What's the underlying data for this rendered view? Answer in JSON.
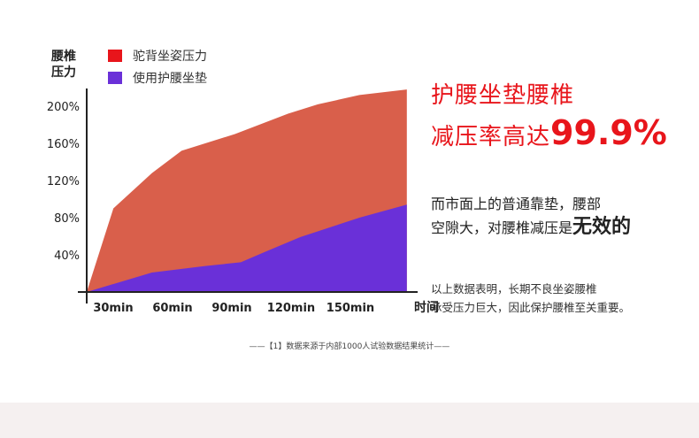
{
  "chart_data": {
    "type": "area",
    "x": [
      "0",
      "30min",
      "60min",
      "90min",
      "120min",
      "150min",
      "时间"
    ],
    "xlabel": "时间",
    "ylabel": "腰椎\n压力",
    "y_ticks": [
      "40%",
      "80%",
      "120%",
      "160%",
      "200%"
    ],
    "ylim": [
      0,
      230
    ],
    "legend_position": "top-left",
    "series": [
      {
        "name": "驼背坐姿压力",
        "color": "#d95f4b",
        "points": [
          [
            0,
            0
          ],
          [
            0.45,
            90
          ],
          [
            1.1,
            128
          ],
          [
            1.6,
            152
          ],
          [
            2.5,
            170
          ],
          [
            3.4,
            192
          ],
          [
            3.9,
            202
          ],
          [
            4.6,
            212
          ],
          [
            5.4,
            218
          ]
        ]
      },
      {
        "name": "使用护腰坐垫",
        "color": "#6a30d8",
        "points": [
          [
            0,
            0
          ],
          [
            1.1,
            21
          ],
          [
            2.0,
            28
          ],
          [
            2.6,
            32
          ],
          [
            3.0,
            43
          ],
          [
            3.6,
            59
          ],
          [
            4.6,
            80
          ],
          [
            5.4,
            94
          ]
        ]
      }
    ],
    "legend_swatch_colors": [
      "#e8151b",
      "#6a30d8"
    ]
  },
  "headline": {
    "line1": "护腰坐垫腰椎",
    "line2_prefix": "减压率高达",
    "line2_value": "99.9%"
  },
  "desc1": {
    "line1": "而市面上的普通靠垫，腰部",
    "line2_prefix": "空隙大，对腰椎减压是",
    "line2_emphasis": "无效的"
  },
  "desc2": {
    "line1": "以上数据表明，长期不良坐姿腰椎",
    "line2": "承受压力巨大，因此保护腰椎至关重要。"
  },
  "footnote": "——【1】数据来源于内部1000人试验数据结果统计——"
}
